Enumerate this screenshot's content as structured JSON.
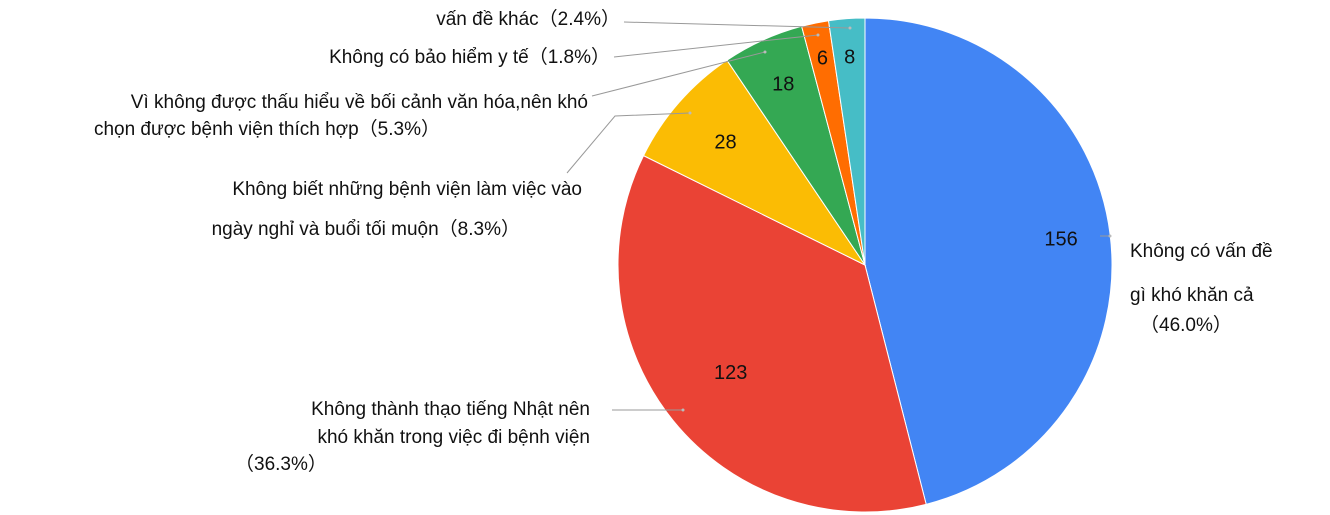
{
  "chart_data": {
    "type": "pie",
    "categories": [
      [
        "Không có vấn đề",
        "gì khó khăn cả",
        "（46.0%）"
      ],
      [
        "Không thành thạo tiếng Nhật nên",
        "khó khăn trong việc đi bệnh viện",
        "（36.3%）"
      ],
      [
        "Không biết những bệnh viện làm việc vào",
        "ngày nghỉ và buổi tối muộn（8.3%）"
      ],
      [
        "Vì không được thấu hiểu về bối cảnh văn hóa,nên khó",
        "chọn được bệnh viện thích hợp（5.3%）"
      ],
      [
        "Không có bảo hiểm y tế（1.8%）"
      ],
      [
        "vấn đề khác（2.4%）"
      ]
    ],
    "values": [
      156,
      123,
      28,
      18,
      6,
      8
    ],
    "colors": [
      "#4285f4",
      "#ea4335",
      "#fbbc04",
      "#34a853",
      "#ff6d01",
      "#46bdc6"
    ]
  }
}
